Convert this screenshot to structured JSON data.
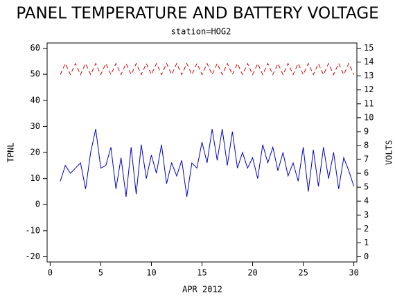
{
  "chart_data": {
    "type": "line",
    "title": "PANEL TEMPERATURE AND BATTERY VOLTAGE",
    "subtitle": "station=HOG2",
    "x_label": "APR 2012",
    "y_label": "TPNL",
    "y2_label": "VOLTS",
    "x": [
      1,
      1.5,
      2,
      2.5,
      3,
      3.5,
      4,
      4.5,
      5,
      5.5,
      6,
      6.5,
      7,
      7.5,
      8,
      8.5,
      9,
      9.5,
      10,
      10.5,
      11,
      11.5,
      12,
      12.5,
      13,
      13.5,
      14,
      14.5,
      15,
      15.5,
      16,
      16.5,
      17,
      17.5,
      18,
      18.5,
      19,
      19.5,
      20,
      20.5,
      21,
      21.5,
      22,
      22.5,
      23,
      23.5,
      24,
      24.5,
      25,
      25.5,
      26,
      26.5,
      27,
      27.5,
      28,
      28.5,
      29,
      29.5,
      30
    ],
    "series": [
      {
        "color": "#0000cc",
        "values": [
          9,
          15,
          12,
          14,
          16,
          6,
          20,
          29,
          14,
          15,
          22,
          6,
          18,
          3,
          22,
          4,
          23,
          10,
          19,
          12,
          23,
          8,
          16,
          11,
          17,
          3,
          16,
          14,
          24,
          16,
          29,
          17,
          29,
          15,
          28,
          14,
          20,
          14,
          18,
          10,
          23,
          16,
          22,
          13,
          20,
          11,
          16,
          9,
          22,
          5,
          21,
          7,
          22,
          10,
          20,
          6,
          18,
          13,
          7
        ]
      },
      {
        "color": "#dd0000",
        "axis": "y2",
        "dashed": true,
        "values": [
          13.1,
          13.9,
          13.1,
          13.9,
          13.1,
          13.9,
          13.1,
          13.9,
          13.1,
          13.9,
          13.1,
          13.9,
          13.1,
          13.9,
          13.1,
          13.9,
          13.1,
          13.9,
          13.1,
          13.9,
          13.1,
          13.9,
          13.1,
          13.9,
          13.1,
          13.9,
          13.1,
          13.9,
          13.1,
          13.9,
          13.1,
          13.9,
          13.1,
          13.9,
          13.1,
          13.9,
          13.1,
          13.9,
          13.1,
          13.9,
          13.1,
          13.9,
          13.1,
          13.9,
          13.1,
          13.9,
          13.1,
          13.9,
          13.1,
          13.9,
          13.1,
          13.9,
          13.1,
          13.9,
          13.1,
          13.9,
          13.1,
          13.9,
          13.1
        ]
      }
    ],
    "xlim": [
      -0.3,
      30.3
    ],
    "xticks": [
      0,
      5,
      10,
      15,
      20,
      25,
      30
    ],
    "ylim": [
      -22,
      62
    ],
    "yticks": [
      -20,
      -10,
      0,
      10,
      20,
      30,
      40,
      50,
      60
    ],
    "y2lim": [
      -0.375,
      15.375
    ],
    "y2ticks": [
      0,
      1,
      2,
      3,
      4,
      5,
      6,
      7,
      8,
      9,
      10,
      11,
      12,
      13,
      14,
      15
    ]
  }
}
